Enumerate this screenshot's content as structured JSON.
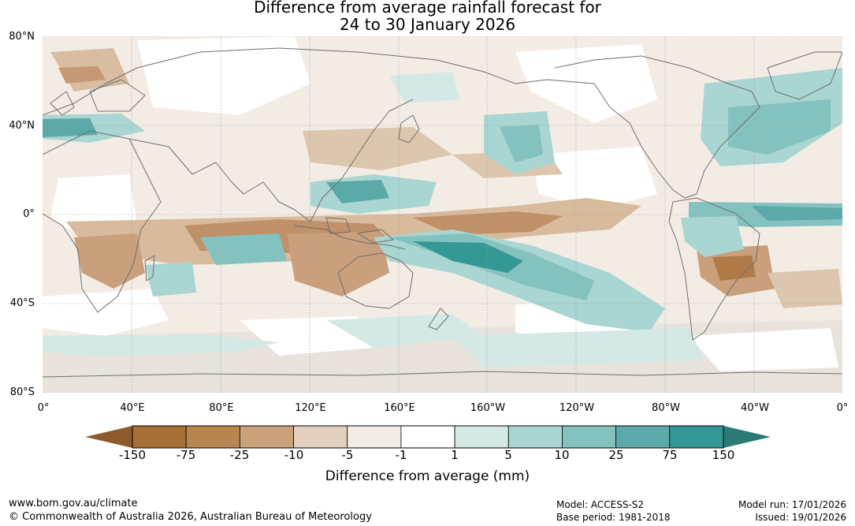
{
  "title": {
    "line1": "Difference from average rainfall forecast for",
    "line2": "24 to 30 January 2026"
  },
  "axes": {
    "lat_labels": [
      "80°N",
      "40°N",
      "0°",
      "40°S",
      "80°S"
    ],
    "lat_values": [
      80,
      40,
      0,
      -40,
      -80
    ],
    "lon_labels": [
      "0°",
      "40°E",
      "80°E",
      "120°E",
      "160°E",
      "160°W",
      "120°W",
      "80°W",
      "40°W",
      "0°"
    ],
    "lon_values": [
      0,
      40,
      80,
      120,
      160,
      200,
      240,
      280,
      320,
      360
    ]
  },
  "legend": {
    "ticks": [
      "-150",
      "-75",
      "-25",
      "-10",
      "-5",
      "-1",
      "1",
      "5",
      "10",
      "25",
      "75",
      "150"
    ],
    "colors": [
      "#a56f35",
      "#b8844f",
      "#c9a27c",
      "#e2cfbd",
      "#f2ece6",
      "#ffffff",
      "#d4e9e6",
      "#a9d5d2",
      "#84c2c0",
      "#5ba9a8",
      "#349895"
    ],
    "extend_low_color": "#8d5a2b",
    "extend_high_color": "#2a7a78",
    "label": "Difference from average (mm)"
  },
  "footer": {
    "url": "www.bom.gov.au/climate",
    "copyright": "© Commonwealth of Australia 2026, Australian Bureau of Meteorology",
    "model": "Model: ACCESS-S2",
    "base_period": "Base period: 1981-2018",
    "model_run": "Model run: 17/01/2026",
    "issued": "Issued: 19/01/2026"
  }
}
